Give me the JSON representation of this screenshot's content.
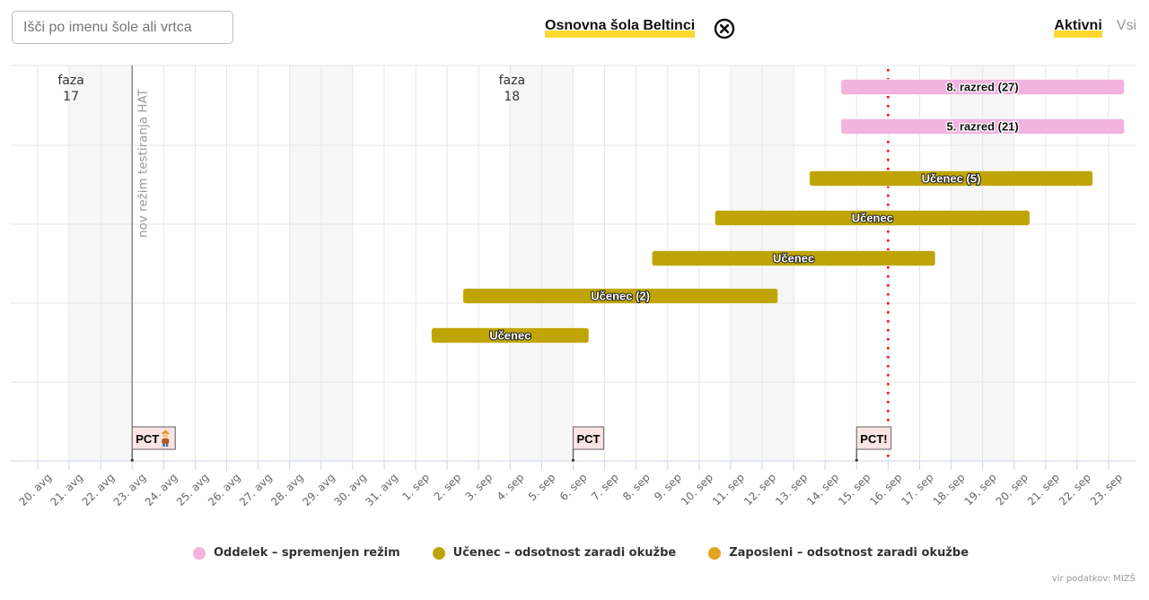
{
  "header": {
    "search": {
      "placeholder": "Išči po imenu šole ali vrtca",
      "value": ""
    },
    "selected_school": "Osnovna šola Beltinci",
    "clear_icon": "circle-x-icon",
    "filter_tabs": [
      {
        "label": "Aktivni",
        "active": true
      },
      {
        "label": "Vsi",
        "active": false
      }
    ]
  },
  "colors": {
    "highlight": "#fdd82e",
    "oddelek": "#f2b3df",
    "ucenec": "#bfa504",
    "zaposleni": "#e2a520",
    "today_line": "#ff0000",
    "flag_fill": "#fde4e4"
  },
  "chart_data": {
    "type": "bar",
    "variant": "x-range timeline",
    "title": "",
    "xlabel": "",
    "ylabel": "",
    "grid": true,
    "x_ticks": [
      "20. avg",
      "21. avg",
      "22. avg",
      "23. avg",
      "24. avg",
      "25. avg",
      "26. avg",
      "27. avg",
      "28. avg",
      "29. avg",
      "30. avg",
      "31. avg",
      "1. sep",
      "2. sep",
      "3. sep",
      "4. sep",
      "5. sep",
      "6. sep",
      "7. sep",
      "8. sep",
      "9. sep",
      "10. sep",
      "11. sep",
      "12. sep",
      "13. sep",
      "14. sep",
      "15. sep",
      "16. sep",
      "17. sep",
      "18. sep",
      "19. sep",
      "20. sep",
      "21. sep",
      "22. sep",
      "23. sep"
    ],
    "xlim": [
      "20. avg",
      "23. sep"
    ],
    "shaded_bands": [
      {
        "from": "21. avg",
        "to": "23. avg"
      },
      {
        "from": "28. avg",
        "to": "30. avg"
      },
      {
        "from": "4. sep",
        "to": "6. sep"
      },
      {
        "from": "11. sep",
        "to": "13. sep"
      },
      {
        "from": "18. sep",
        "to": "20. sep"
      }
    ],
    "phase_labels": [
      {
        "line1": "faza",
        "line2": "17",
        "at": "21. avg"
      },
      {
        "line1": "faza",
        "line2": "18",
        "at": "4. sep"
      }
    ],
    "plot_lines": [
      {
        "at": "23. avg",
        "label": "nov režim testiranja HAT",
        "style": "solid",
        "color": "#888888"
      },
      {
        "at": "16. sep",
        "label": "",
        "style": "dotted",
        "color": "#ff0000"
      }
    ],
    "flags": [
      {
        "at": "23. avg",
        "title": "PCT",
        "icon": "person-emoji"
      },
      {
        "at": "6. sep",
        "title": "PCT",
        "icon": ""
      },
      {
        "at": "15. sep",
        "title": "PCT!",
        "icon": ""
      }
    ],
    "series": [
      {
        "name": "Oddelek – spremenjen režim",
        "color": "#f2b3df",
        "label_style": "dark",
        "bars": [
          {
            "label": "8. razred (27)",
            "start": "14. sep",
            "end": "23. sep"
          },
          {
            "label": "5. razred (21)",
            "start": "14. sep",
            "end": "23. sep"
          }
        ]
      },
      {
        "name": "Učenec – odsotnost zaradi okužbe",
        "color": "#bfa504",
        "label_style": "light",
        "bars": [
          {
            "label": "Učenec (5)",
            "start": "13. sep",
            "end": "22. sep"
          },
          {
            "label": "Učenec",
            "start": "10. sep",
            "end": "20. sep"
          },
          {
            "label": "Učenec",
            "start": "8. sep",
            "end": "17. sep"
          },
          {
            "label": "Učenec (2)",
            "start": "2. sep",
            "end": "12. sep"
          },
          {
            "label": "Učenec",
            "start": "1. sep",
            "end": "6. sep"
          }
        ]
      },
      {
        "name": "Zaposleni – odsotnost zaradi okužbe",
        "color": "#e2a520",
        "label_style": "light",
        "bars": []
      }
    ],
    "legend_position": "bottom-center",
    "credits": "vir podatkov: MIZŠ"
  }
}
